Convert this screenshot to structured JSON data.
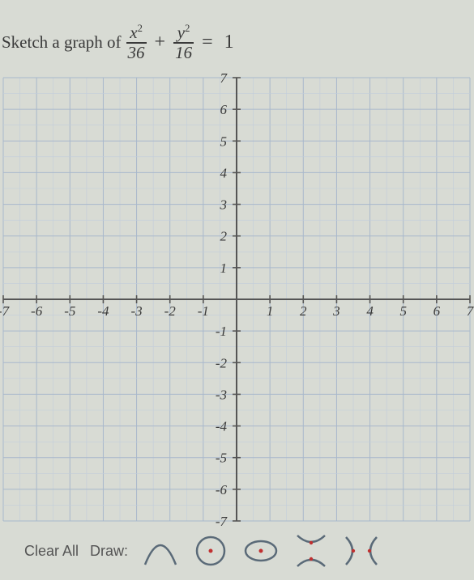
{
  "prompt": {
    "lead": "Sketch a graph of",
    "frac1_num_var": "x",
    "frac1_num_exp": "2",
    "frac1_den": "36",
    "plus": "+",
    "frac2_num_var": "y",
    "frac2_num_exp": "2",
    "frac2_den": "16",
    "eq": "=",
    "rhs": "1"
  },
  "graph": {
    "xmin": -7,
    "xmax": 7,
    "ymin": -7,
    "ymax": 7,
    "xticks": [
      -7,
      -6,
      -5,
      -4,
      -3,
      -2,
      -1,
      1,
      2,
      3,
      4,
      5,
      6,
      7
    ],
    "yticks": [
      -7,
      -6,
      -5,
      -4,
      -3,
      -2,
      -1,
      1,
      2,
      3,
      4,
      5,
      6,
      7
    ],
    "tick_labels_x": [
      "-7",
      "-6",
      "-5",
      "-4",
      "-3",
      "-2",
      "-1",
      "1",
      "2",
      "3",
      "4",
      "5",
      "6",
      "7"
    ],
    "tick_labels_y": [
      "-7",
      "-6",
      "-5",
      "-4",
      "-3",
      "-2",
      "-1",
      "1",
      "2",
      "3",
      "4",
      "5",
      "6",
      "7"
    ],
    "grid_color": "#a8b8cc",
    "minor_grid_color": "#c2cddb",
    "axis_color": "#555555",
    "background": "#d8dbd4",
    "tick_font_size": 17,
    "tick_font_family": "serif",
    "tick_color": "#3a3a3a"
  },
  "toolbar": {
    "clear_label": "Clear All",
    "draw_label": "Draw:",
    "tool_stroke": "#5a6a78",
    "tool_dot": "#c03030",
    "tools": [
      "parabola",
      "circle-dot",
      "ellipse-dot",
      "x-cross",
      "x-cross-dots"
    ]
  }
}
